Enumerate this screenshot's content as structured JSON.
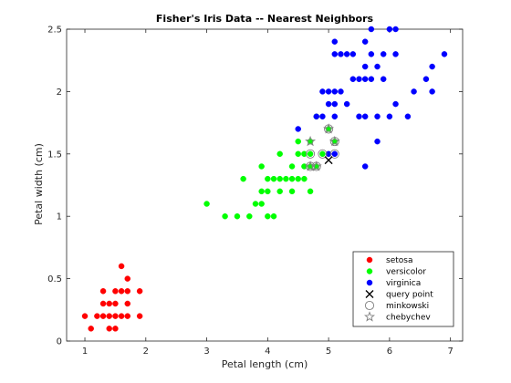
{
  "chart_data": {
    "type": "scatter",
    "title": "Fisher's Iris Data -- Nearest Neighbors",
    "xlabel": "Petal length (cm)",
    "ylabel": "Petal width (cm)",
    "xlim": [
      0.7,
      7.2
    ],
    "ylim": [
      0,
      2.5
    ],
    "xticks": [
      "1",
      "2",
      "3",
      "4",
      "5",
      "6",
      "7"
    ],
    "yticks": [
      "0",
      "0.5",
      "1",
      "1.5",
      "2",
      "2.5"
    ],
    "grid": false,
    "legend_position": "bottom-right",
    "series": [
      {
        "name": "setosa",
        "color": "#ff0000",
        "marker": "circle",
        "points": [
          [
            1,
            0.2
          ],
          [
            1.1,
            0.1
          ],
          [
            1.2,
            0.2
          ],
          [
            1.3,
            0.2
          ],
          [
            1.3,
            0.3
          ],
          [
            1.3,
            0.4
          ],
          [
            1.4,
            0.1
          ],
          [
            1.4,
            0.2
          ],
          [
            1.4,
            0.3
          ],
          [
            1.5,
            0.1
          ],
          [
            1.5,
            0.2
          ],
          [
            1.5,
            0.3
          ],
          [
            1.5,
            0.4
          ],
          [
            1.6,
            0.2
          ],
          [
            1.6,
            0.4
          ],
          [
            1.6,
            0.6
          ],
          [
            1.7,
            0.2
          ],
          [
            1.7,
            0.3
          ],
          [
            1.7,
            0.4
          ],
          [
            1.7,
            0.5
          ],
          [
            1.9,
            0.2
          ],
          [
            1.9,
            0.4
          ]
        ]
      },
      {
        "name": "versicolor",
        "color": "#00ff00",
        "marker": "circle",
        "points": [
          [
            3,
            1.1
          ],
          [
            3.3,
            1
          ],
          [
            3.5,
            1
          ],
          [
            3.6,
            1.3
          ],
          [
            3.7,
            1
          ],
          [
            3.8,
            1.1
          ],
          [
            3.9,
            1.1
          ],
          [
            3.9,
            1.2
          ],
          [
            3.9,
            1.4
          ],
          [
            4,
            1
          ],
          [
            4,
            1.2
          ],
          [
            4,
            1.3
          ],
          [
            4.1,
            1
          ],
          [
            4.1,
            1.3
          ],
          [
            4.2,
            1.2
          ],
          [
            4.2,
            1.3
          ],
          [
            4.2,
            1.5
          ],
          [
            4.3,
            1.3
          ],
          [
            4.4,
            1.2
          ],
          [
            4.4,
            1.3
          ],
          [
            4.4,
            1.4
          ],
          [
            4.5,
            1.3
          ],
          [
            4.5,
            1.5
          ],
          [
            4.5,
            1.6
          ],
          [
            4.6,
            1.3
          ],
          [
            4.6,
            1.4
          ],
          [
            4.6,
            1.5
          ],
          [
            4.7,
            1.2
          ],
          [
            4.7,
            1.4
          ],
          [
            4.7,
            1.5
          ],
          [
            4.7,
            1.6
          ],
          [
            4.8,
            1.4
          ],
          [
            4.8,
            1.8
          ],
          [
            4.9,
            1.5
          ],
          [
            5,
            1.7
          ],
          [
            5.1,
            1.6
          ]
        ]
      },
      {
        "name": "virginica",
        "color": "#0000ff",
        "marker": "circle",
        "points": [
          [
            4.5,
            1.7
          ],
          [
            4.8,
            1.8
          ],
          [
            4.9,
            1.8
          ],
          [
            4.9,
            2
          ],
          [
            5,
            1.5
          ],
          [
            5,
            1.9
          ],
          [
            5,
            2
          ],
          [
            5.1,
            1.5
          ],
          [
            5.1,
            1.8
          ],
          [
            5.1,
            1.9
          ],
          [
            5.1,
            2
          ],
          [
            5.1,
            2.3
          ],
          [
            5.1,
            2.4
          ],
          [
            5.2,
            2
          ],
          [
            5.2,
            2.3
          ],
          [
            5.3,
            1.9
          ],
          [
            5.3,
            2.3
          ],
          [
            5.4,
            2.1
          ],
          [
            5.4,
            2.3
          ],
          [
            5.5,
            1.8
          ],
          [
            5.5,
            2.1
          ],
          [
            5.6,
            1.4
          ],
          [
            5.6,
            1.8
          ],
          [
            5.6,
            2.1
          ],
          [
            5.6,
            2.2
          ],
          [
            5.6,
            2.4
          ],
          [
            5.7,
            2.1
          ],
          [
            5.7,
            2.3
          ],
          [
            5.7,
            2.5
          ],
          [
            5.8,
            1.6
          ],
          [
            5.8,
            1.8
          ],
          [
            5.8,
            2.2
          ],
          [
            5.9,
            2.1
          ],
          [
            5.9,
            2.3
          ],
          [
            6,
            1.8
          ],
          [
            6,
            2.5
          ],
          [
            6.1,
            1.9
          ],
          [
            6.1,
            2.3
          ],
          [
            6.1,
            2.5
          ],
          [
            6.3,
            1.8
          ],
          [
            6.4,
            2
          ],
          [
            6.6,
            2.1
          ],
          [
            6.7,
            2
          ],
          [
            6.7,
            2.2
          ],
          [
            6.9,
            2.3
          ]
        ]
      }
    ],
    "query_point": {
      "name": "query point",
      "color": "#000000",
      "marker": "x",
      "x": 5,
      "y": 1.45
    },
    "neighbors": [
      {
        "name": "minkowski",
        "color": "#808080",
        "marker": "circle-open",
        "points": [
          [
            4.8,
            1.4
          ],
          [
            4.9,
            1.5
          ],
          [
            4.7,
            1.5
          ],
          [
            4.7,
            1.4
          ],
          [
            5.1,
            1.5
          ],
          [
            5,
            1.7
          ],
          [
            5.1,
            1.6
          ]
        ]
      },
      {
        "name": "chebychev",
        "color": "#808080",
        "marker": "star-open",
        "points": [
          [
            4.7,
            1.6
          ],
          [
            5,
            1.7
          ],
          [
            4.8,
            1.4
          ],
          [
            5.1,
            1.6
          ],
          [
            4.7,
            1.4
          ]
        ]
      }
    ]
  }
}
